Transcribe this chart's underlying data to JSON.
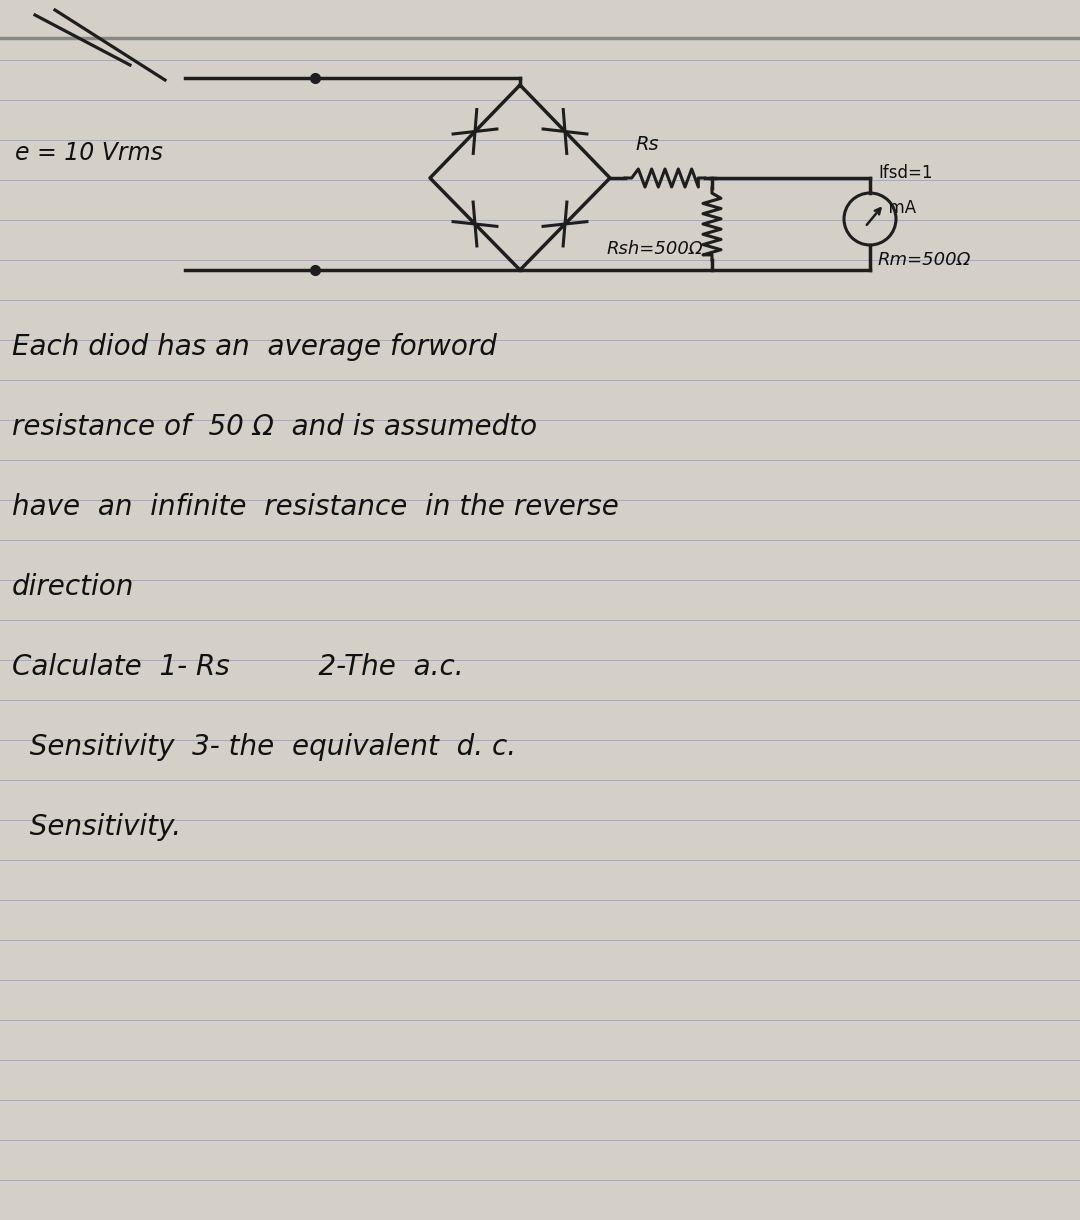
{
  "bg_color": "#d4d0c8",
  "line_color": "#1e1e1e",
  "notebook_line_color": "#a8a8b8",
  "text_color": "#111111",
  "label_e": "e = 10 Vrms",
  "label_fsd_1": "Ifsd=1",
  "label_fsd_2": "  mA",
  "label_Rs": "Rs",
  "label_Rsh": "Rsh=500Ω",
  "label_Rm": "Rm=500Ω",
  "text_line1": "Each diod has an  average forword",
  "text_line2": "resistance of  50 Ω  and is assumedto",
  "text_line3": "have  an  infinite  resistance  in the reverse",
  "text_line4": "direction",
  "text_line5": "Calculate  1- Rs          2-The  a.c.",
  "text_line6": "  Sensitivity  3- the  equivalent  d. c.",
  "text_line7": "  Sensitivity.",
  "notebook_lines_y": [
    11.6,
    11.2,
    10.8,
    10.4,
    10.0,
    9.6,
    9.2,
    8.8,
    8.4,
    8.0,
    7.6,
    7.2,
    6.8,
    6.4,
    6.0,
    5.6,
    5.2,
    4.8,
    4.4,
    4.0,
    3.6,
    3.2,
    2.8,
    2.4,
    2.0,
    1.6,
    1.2,
    0.8,
    0.4
  ]
}
